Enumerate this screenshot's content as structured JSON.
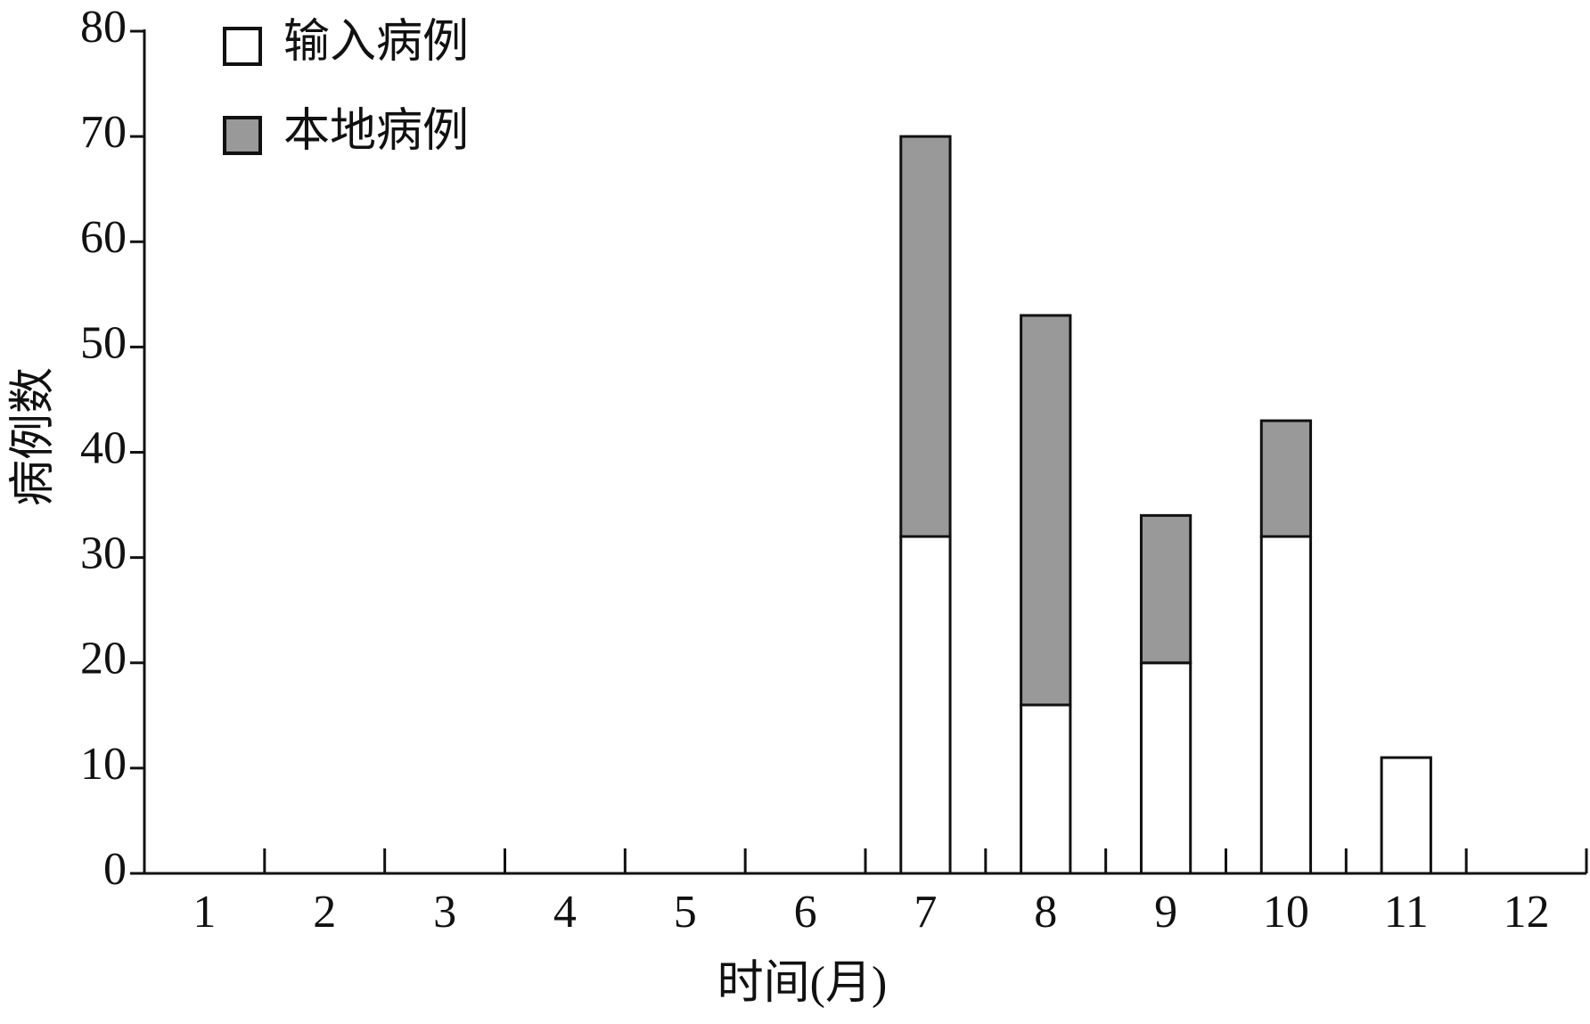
{
  "chart_data": {
    "type": "stacked_bar",
    "x_label": "时间(月)",
    "y_label": "病例数",
    "categories": [
      "1",
      "2",
      "3",
      "4",
      "5",
      "6",
      "7",
      "8",
      "9",
      "10",
      "11",
      "12"
    ],
    "series": [
      {
        "name": "输入病例",
        "color": "#ffffff",
        "values": [
          0,
          0,
          0,
          0,
          0,
          0,
          32,
          16,
          20,
          32,
          11,
          0
        ]
      },
      {
        "name": "本地病例",
        "color": "#999999",
        "values": [
          0,
          0,
          0,
          0,
          0,
          0,
          38,
          37,
          14,
          11,
          0,
          0
        ]
      }
    ],
    "ylim": [
      0,
      80
    ],
    "yticks": [
      0,
      10,
      20,
      30,
      40,
      50,
      60,
      70,
      80
    ],
    "legend": "top-left"
  }
}
